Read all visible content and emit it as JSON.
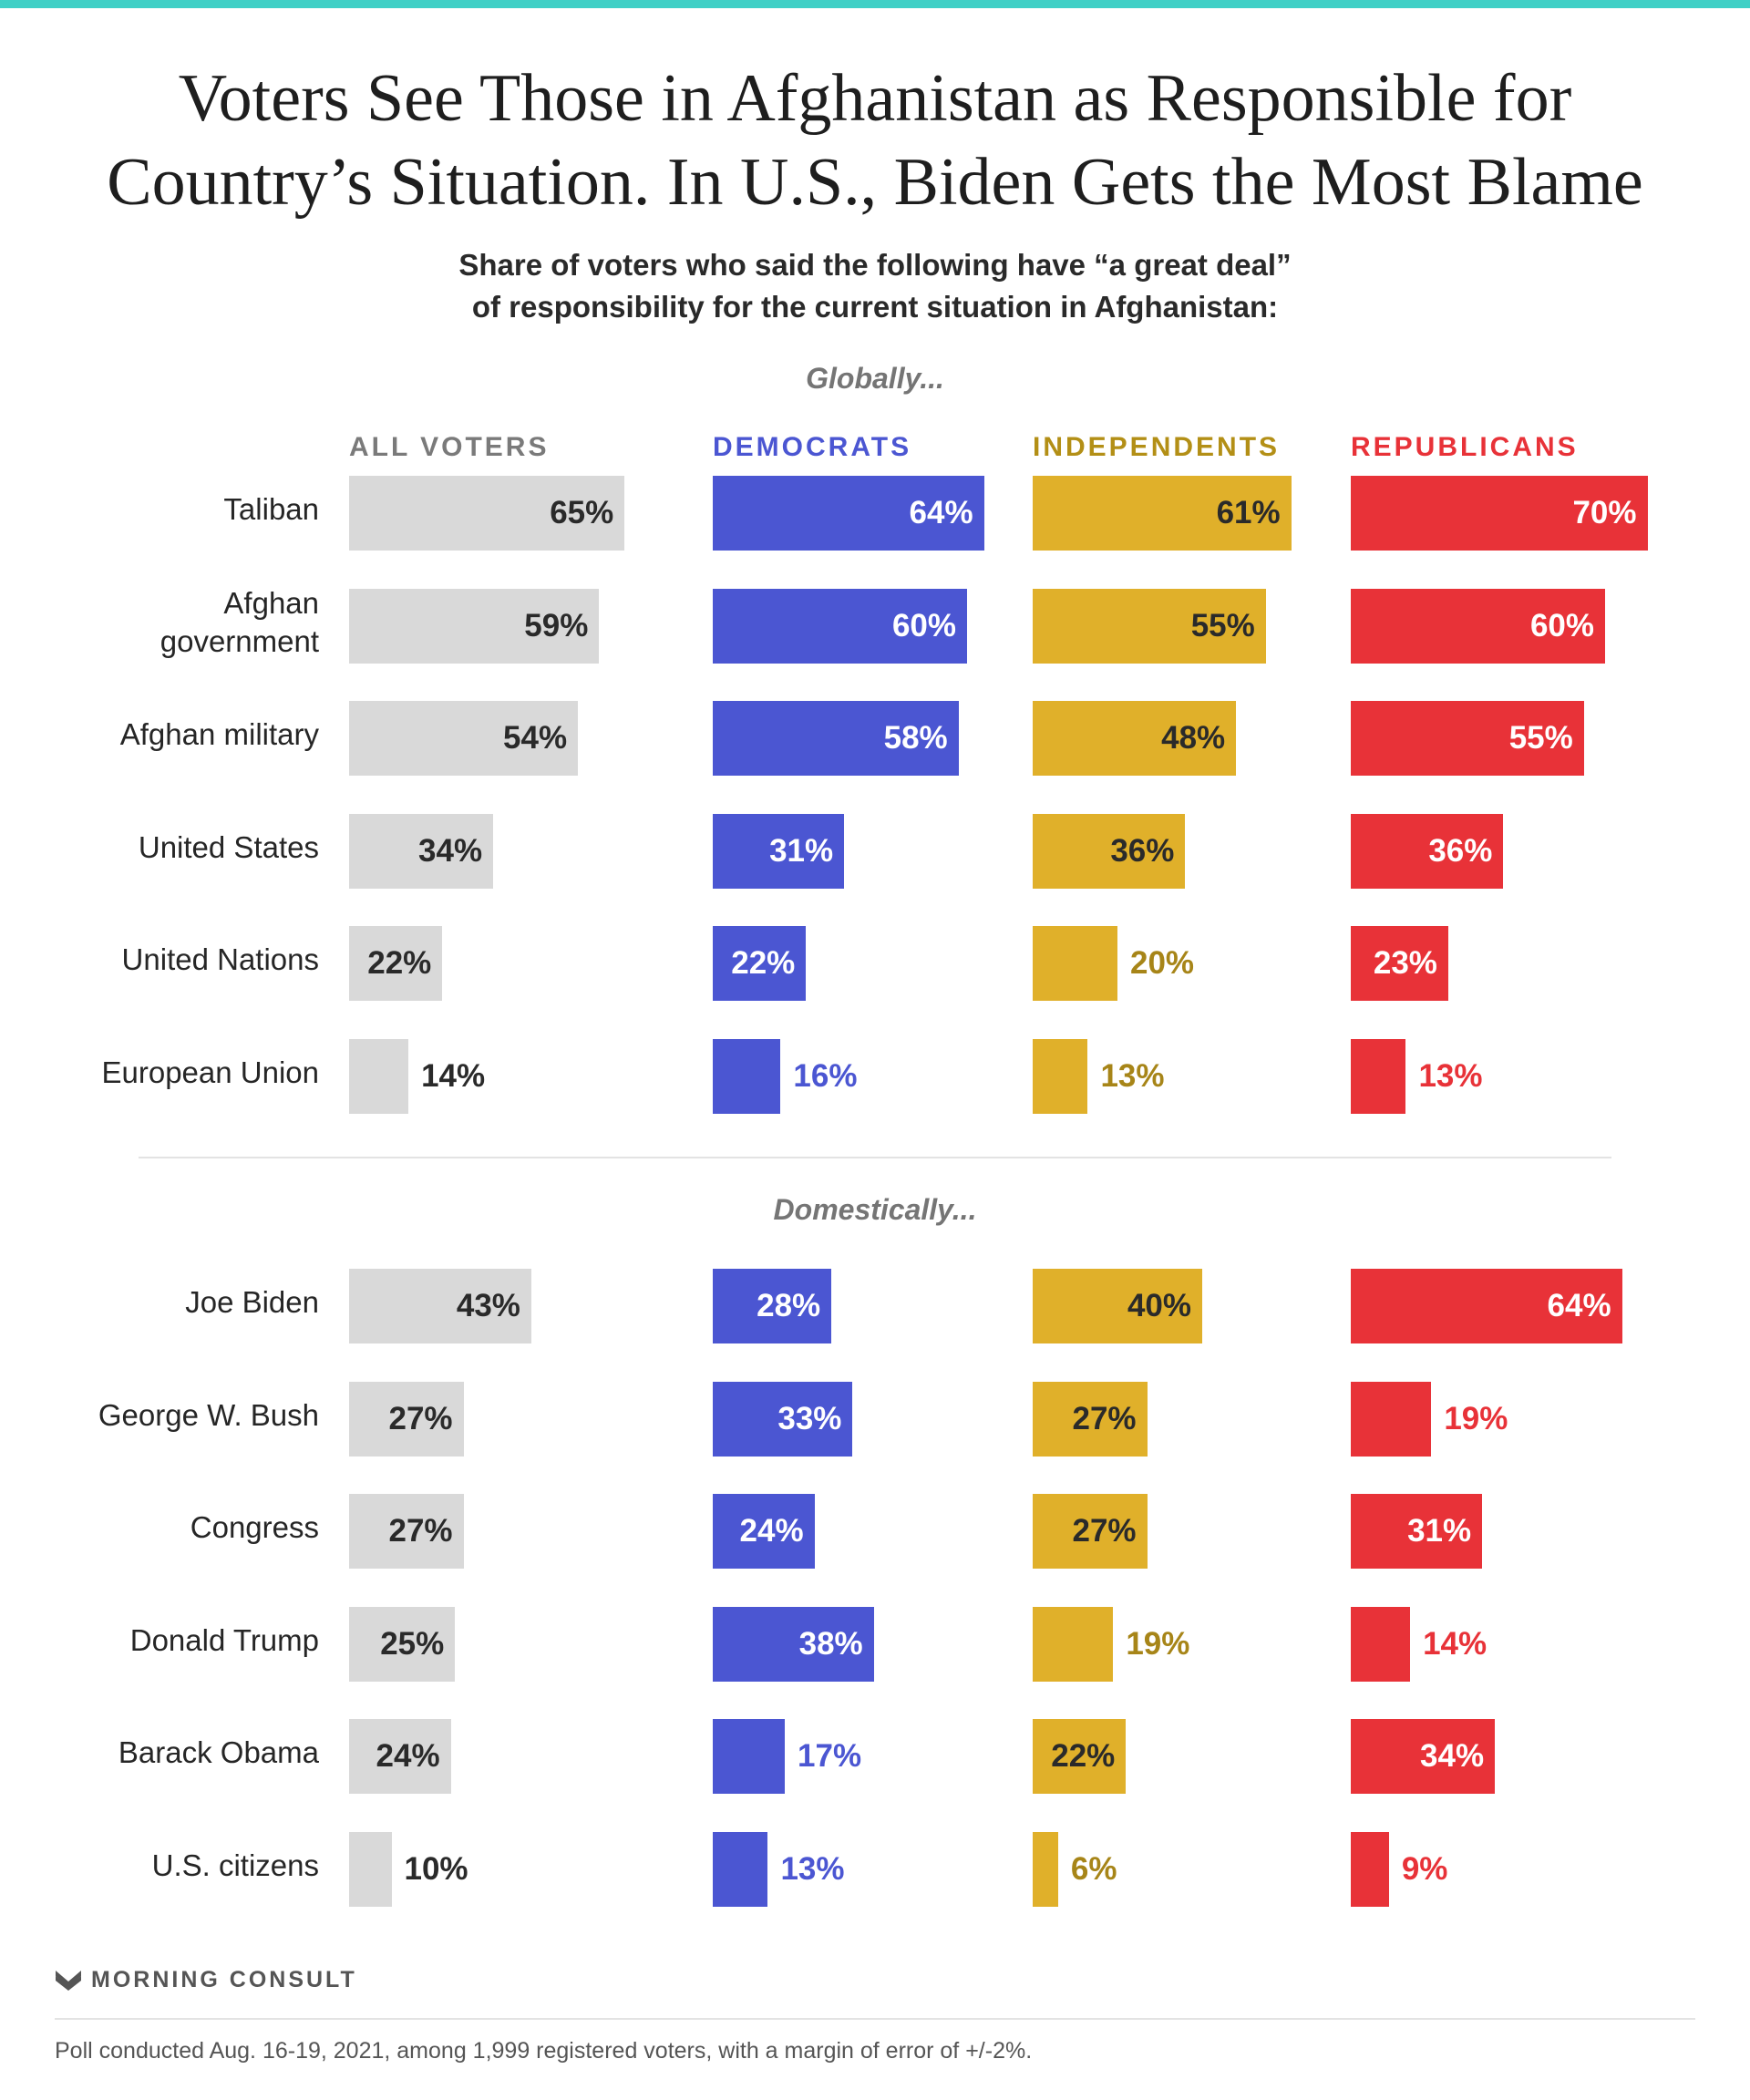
{
  "title": {
    "line1": "Voters See Those in Afghanistan as Responsible for",
    "line2": "Country’s Situation. In U.S., Biden Gets the Most Blame"
  },
  "subtitle": {
    "line1": "Share of voters who said the following have “a great deal”",
    "line2": "of responsibility for the current situation in Afghanistan:"
  },
  "colors": {
    "accent_rule": "#3fd0c6",
    "all_voters": "#d9d9d9",
    "democrats": "#4b56d2",
    "independents": "#e0b02a",
    "republicans": "#e83238"
  },
  "chart_data": {
    "type": "bar",
    "orientation": "horizontal",
    "value_suffix": "%",
    "series": [
      {
        "key": "all_voters",
        "name": "ALL VOTERS"
      },
      {
        "key": "democrats",
        "name": "DEMOCRATS"
      },
      {
        "key": "independents",
        "name": "INDEPENDENTS"
      },
      {
        "key": "republicans",
        "name": "REPUBLICANS"
      }
    ],
    "sections": [
      {
        "label": "Globally...",
        "categories": [
          "Taliban",
          "Afghan government",
          "Afghan military",
          "United States",
          "United Nations",
          "European Union"
        ],
        "category_lines": [
          [
            "Taliban"
          ],
          [
            "Afghan",
            "government"
          ],
          [
            "Afghan military"
          ],
          [
            "United States"
          ],
          [
            "United Nations"
          ],
          [
            "European Union"
          ]
        ],
        "values": {
          "all_voters": [
            65,
            59,
            54,
            34,
            22,
            14
          ],
          "democrats": [
            64,
            60,
            58,
            31,
            22,
            16
          ],
          "independents": [
            61,
            55,
            48,
            36,
            20,
            13
          ],
          "republicans": [
            70,
            60,
            55,
            36,
            23,
            13
          ]
        }
      },
      {
        "label": "Domestically...",
        "categories": [
          "Joe Biden",
          "George W. Bush",
          "Congress",
          "Donald Trump",
          "Barack Obama",
          "U.S. citizens"
        ],
        "category_lines": [
          [
            "Joe Biden"
          ],
          [
            "George W. Bush"
          ],
          [
            "Congress"
          ],
          [
            "Donald Trump"
          ],
          [
            "Barack Obama"
          ],
          [
            "U.S. citizens"
          ]
        ],
        "values": {
          "all_voters": [
            43,
            27,
            27,
            25,
            24,
            10
          ],
          "democrats": [
            28,
            33,
            24,
            38,
            17,
            13
          ],
          "independents": [
            40,
            27,
            27,
            19,
            22,
            6
          ],
          "republicans": [
            64,
            19,
            31,
            14,
            34,
            9
          ]
        }
      }
    ]
  },
  "footer": {
    "brand": "MORNING CONSULT",
    "note": "Poll conducted Aug. 16-19, 2021, among 1,999 registered voters, with a margin of error of +/-2%."
  }
}
